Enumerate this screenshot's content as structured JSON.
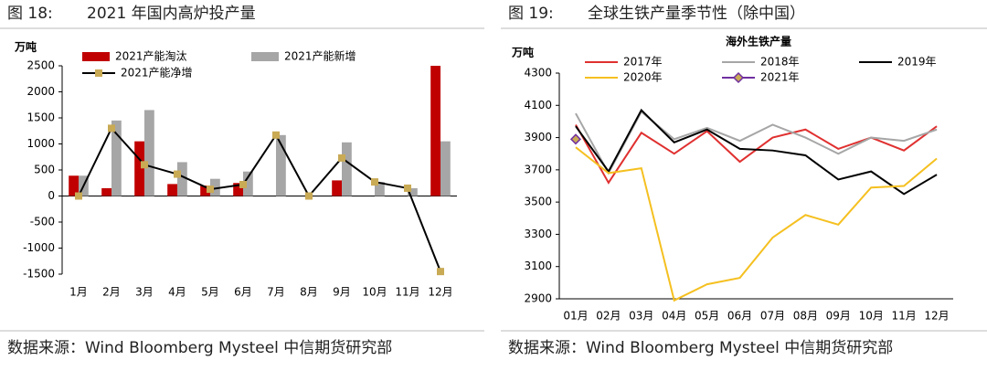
{
  "chart_data": [
    {
      "type": "combo",
      "figure": "图 18:",
      "title": "2021 年国内高炉投产量",
      "ylabel": "万吨",
      "source": "数据来源：Wind Bloomberg Mysteel 中信期货研究部",
      "categories": [
        "1月",
        "2月",
        "3月",
        "4月",
        "5月",
        "6月",
        "7月",
        "8月",
        "9月",
        "10月",
        "11月",
        "12月"
      ],
      "series": [
        {
          "name": "2021产能淘汰",
          "type": "bar",
          "color": "#c00000",
          "values": [
            390,
            150,
            1050,
            230,
            200,
            250,
            0,
            0,
            300,
            0,
            0,
            2500
          ]
        },
        {
          "name": "2021产能新增",
          "type": "bar",
          "color": "#a6a6a6",
          "values": [
            390,
            1450,
            1650,
            650,
            330,
            470,
            1170,
            0,
            1030,
            270,
            150,
            1050
          ]
        },
        {
          "name": "2021产能净增",
          "type": "line",
          "color": "#000000",
          "marker_color": "#c9aa55",
          "values": [
            0,
            1300,
            600,
            420,
            130,
            220,
            1170,
            0,
            730,
            270,
            150,
            -1450
          ]
        }
      ],
      "ylim": [
        -1500,
        2500
      ],
      "yticks": [
        -1500,
        -1000,
        -500,
        0,
        500,
        1000,
        1500,
        2000,
        2500
      ]
    },
    {
      "type": "line",
      "figure": "图 19:",
      "title": "全球生铁产量季节性（除中国）",
      "subtitle": "海外生铁产量",
      "ylabel": "万吨",
      "source": "数据来源：Wind Bloomberg Mysteel 中信期货研究部",
      "categories": [
        "01月",
        "02月",
        "03月",
        "04月",
        "05月",
        "06月",
        "07月",
        "08月",
        "09月",
        "10月",
        "11月",
        "12月"
      ],
      "series": [
        {
          "name": "2017年",
          "color": "#e03030",
          "values": [
            3980,
            3620,
            3930,
            3800,
            3940,
            3750,
            3900,
            3950,
            3830,
            3900,
            3820,
            3970
          ]
        },
        {
          "name": "2018年",
          "color": "#a6a6a6",
          "values": [
            4050,
            3680,
            4060,
            3890,
            3960,
            3880,
            3980,
            3900,
            3800,
            3900,
            3880,
            3950
          ]
        },
        {
          "name": "2019年",
          "color": "#000000",
          "values": [
            3970,
            3690,
            4070,
            3870,
            3950,
            3830,
            3820,
            3790,
            3640,
            3690,
            3550,
            3670
          ]
        },
        {
          "name": "2020年",
          "color": "#f5c020",
          "values": [
            3840,
            3680,
            3710,
            2890,
            2990,
            3030,
            3280,
            3420,
            3360,
            3590,
            3600,
            3770
          ]
        },
        {
          "name": "2021年",
          "color": "#7030a0",
          "marker_color": "#c9aa55",
          "values": [
            3890,
            null,
            null,
            null,
            null,
            null,
            null,
            null,
            null,
            null,
            null,
            null
          ]
        }
      ],
      "ylim": [
        2900,
        4300
      ],
      "yticks": [
        2900,
        3100,
        3300,
        3500,
        3700,
        3900,
        4100,
        4300
      ]
    }
  ]
}
